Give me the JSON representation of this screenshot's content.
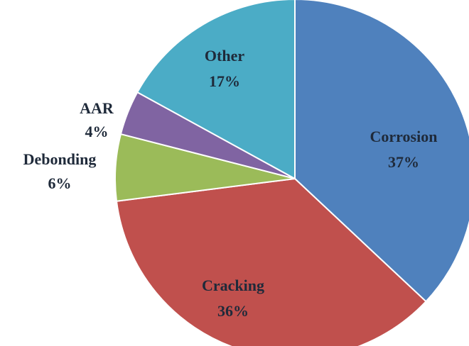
{
  "chart_data": {
    "type": "pie",
    "slices": [
      {
        "label": "Corrosion",
        "value": 37,
        "display": "37%",
        "color": "#4f81bd"
      },
      {
        "label": "Cracking",
        "value": 36,
        "display": "36%",
        "color": "#c0504d"
      },
      {
        "label": "Debonding",
        "value": 6,
        "display": "6%",
        "color": "#9bbb59"
      },
      {
        "label": "AAR",
        "value": 4,
        "display": "4%",
        "color": "#8064a2"
      },
      {
        "label": "Other",
        "value": 17,
        "display": "17%",
        "color": "#4bacc6"
      }
    ],
    "start": "12 o'clock",
    "direction": "clockwise",
    "label_placement": "inside for large slices, outside-left for Debonding and AAR"
  }
}
